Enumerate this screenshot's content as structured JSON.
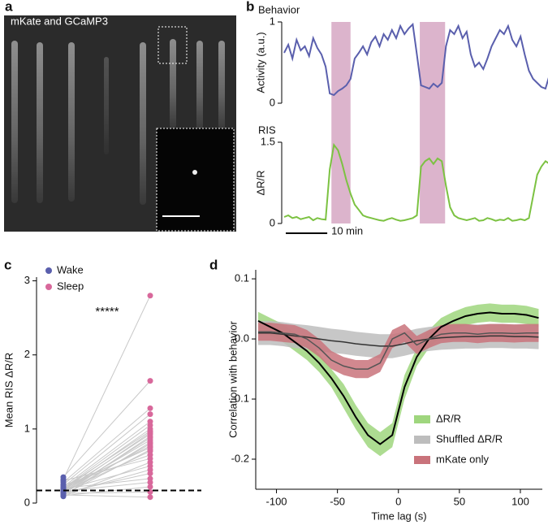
{
  "image_panel": {
    "panel_label": "a",
    "caption": "mKate and GCaMP3"
  },
  "chart_data": [
    {
      "type": "line",
      "panel_label": "b",
      "title": "Behavior",
      "ylabel": "Activity (a.u.)",
      "color": "#5a5fad",
      "x": [
        0,
        1,
        2,
        3,
        4,
        5,
        6,
        7,
        8,
        9,
        10,
        11,
        12,
        13,
        14,
        15,
        16,
        17,
        18,
        19,
        20,
        21,
        22,
        23,
        24,
        25,
        26,
        27,
        28,
        29,
        30,
        31,
        32,
        33,
        34,
        35,
        36,
        37,
        38,
        39,
        40,
        41,
        42,
        43,
        44,
        45,
        46,
        47,
        48,
        49,
        50,
        51,
        52,
        53,
        54,
        55,
        56,
        57,
        58,
        59,
        60,
        61,
        62,
        63,
        64
      ],
      "values": [
        0.62,
        0.72,
        0.55,
        0.78,
        0.65,
        0.7,
        0.58,
        0.8,
        0.68,
        0.6,
        0.45,
        0.12,
        0.1,
        0.15,
        0.18,
        0.22,
        0.3,
        0.55,
        0.62,
        0.7,
        0.6,
        0.75,
        0.82,
        0.7,
        0.85,
        0.78,
        0.9,
        0.8,
        0.95,
        0.85,
        0.92,
        0.97,
        0.6,
        0.22,
        0.2,
        0.18,
        0.24,
        0.2,
        0.25,
        0.7,
        0.9,
        0.85,
        0.95,
        0.8,
        0.88,
        0.6,
        0.45,
        0.5,
        0.42,
        0.55,
        0.7,
        0.8,
        0.9,
        0.85,
        0.95,
        0.78,
        0.7,
        0.82,
        0.6,
        0.4,
        0.3,
        0.25,
        0.2,
        0.18,
        0.35
      ],
      "xlim": [
        0,
        64
      ],
      "ylim": [
        0,
        1
      ],
      "yticks": [
        0,
        1
      ],
      "shaded": [
        [
          11.4,
          16
        ],
        [
          32.7,
          38.8
        ]
      ],
      "shade_color": "#dcb4cc"
    },
    {
      "type": "line",
      "title": "RIS",
      "ylabel": "ΔR/R",
      "color": "#7cc242",
      "x": [
        0,
        1,
        2,
        3,
        4,
        5,
        6,
        7,
        8,
        9,
        10,
        11,
        12,
        13,
        14,
        15,
        16,
        17,
        18,
        19,
        20,
        21,
        22,
        23,
        24,
        25,
        26,
        27,
        28,
        29,
        30,
        31,
        32,
        33,
        34,
        35,
        36,
        37,
        38,
        39,
        40,
        41,
        42,
        43,
        44,
        45,
        46,
        47,
        48,
        49,
        50,
        51,
        52,
        53,
        54,
        55,
        56,
        57,
        58,
        59,
        60,
        61,
        62,
        63,
        64
      ],
      "values": [
        0.12,
        0.15,
        0.1,
        0.12,
        0.08,
        0.1,
        0.12,
        0.06,
        0.1,
        0.08,
        0.07,
        1.0,
        1.45,
        1.35,
        1.1,
        0.8,
        0.55,
        0.35,
        0.25,
        0.15,
        0.12,
        0.1,
        0.08,
        0.06,
        0.05,
        0.08,
        0.1,
        0.07,
        0.05,
        0.06,
        0.08,
        0.1,
        0.15,
        1.05,
        1.15,
        1.2,
        1.1,
        1.2,
        1.15,
        0.7,
        0.3,
        0.15,
        0.1,
        0.08,
        0.06,
        0.08,
        0.1,
        0.05,
        0.06,
        0.1,
        0.08,
        0.05,
        0.07,
        0.06,
        0.1,
        0.05,
        0.06,
        0.08,
        0.06,
        0.1,
        0.5,
        0.9,
        1.05,
        1.15,
        1.1
      ],
      "xlim": [
        0,
        64
      ],
      "ylim": [
        0,
        1.5
      ],
      "yticks": [
        0,
        1.5
      ],
      "scale_bar": {
        "value": 10,
        "label": "10 min"
      }
    },
    {
      "type": "paired-scatter",
      "panel_label": "c",
      "ylabel": "Mean RIS ΔR/R",
      "annotation": "*****",
      "series": [
        {
          "name": "Wake",
          "color": "#5a5fad",
          "values": [
            0.32,
            0.35,
            0.28,
            0.25,
            0.22,
            0.2,
            0.18,
            0.2,
            0.15,
            0.17,
            0.12,
            0.14,
            0.16,
            0.1,
            0.13,
            0.19,
            0.21,
            0.11,
            0.15,
            0.24,
            0.3,
            0.09,
            0.18,
            0.12,
            0.14,
            0.2,
            0.16,
            0.1,
            0.13,
            0.11
          ]
        },
        {
          "name": "Sleep",
          "color": "#d8689b",
          "values": [
            2.8,
            1.65,
            1.28,
            1.2,
            1.1,
            1.05,
            1.0,
            0.97,
            0.95,
            0.93,
            0.9,
            0.88,
            0.85,
            0.82,
            0.8,
            0.77,
            0.75,
            0.72,
            0.7,
            0.65,
            0.6,
            0.55,
            0.5,
            0.45,
            0.4,
            0.33,
            0.28,
            0.22,
            0.15,
            0.08
          ]
        }
      ],
      "connector_color": "#c8c8c8",
      "reference_line": 0.17,
      "ylim": [
        0,
        3.05
      ],
      "yticks": [
        0,
        1,
        2,
        3
      ]
    },
    {
      "type": "band-line",
      "panel_label": "d",
      "xlabel": "Time lag (s)",
      "ylabel": "Correlation with behavior",
      "x": [
        -115,
        -105,
        -95,
        -85,
        -75,
        -65,
        -55,
        -45,
        -35,
        -25,
        -15,
        -5,
        5,
        15,
        25,
        35,
        45,
        55,
        65,
        75,
        85,
        95,
        105,
        115
      ],
      "series": [
        {
          "name": "ΔR/R",
          "color": "#9fd67e",
          "line_color": "#000000",
          "values": [
            0.03,
            0.02,
            0.01,
            -0.005,
            -0.02,
            -0.04,
            -0.065,
            -0.095,
            -0.13,
            -0.16,
            -0.175,
            -0.16,
            -0.08,
            -0.03,
            0.0,
            0.02,
            0.03,
            0.038,
            0.042,
            0.044,
            0.042,
            0.042,
            0.04,
            0.035
          ],
          "lower": [
            0.015,
            0.005,
            -0.005,
            -0.02,
            -0.035,
            -0.055,
            -0.08,
            -0.115,
            -0.15,
            -0.18,
            -0.195,
            -0.18,
            -0.1,
            -0.045,
            -0.015,
            0.005,
            0.015,
            0.023,
            0.027,
            0.029,
            0.027,
            0.027,
            0.025,
            0.02
          ],
          "upper": [
            0.045,
            0.035,
            0.025,
            0.01,
            -0.005,
            -0.025,
            -0.05,
            -0.075,
            -0.11,
            -0.14,
            -0.155,
            -0.14,
            -0.06,
            -0.015,
            0.015,
            0.035,
            0.045,
            0.053,
            0.057,
            0.059,
            0.057,
            0.057,
            0.055,
            0.05
          ]
        },
        {
          "name": "Shuffled ΔR/R",
          "color": "#bdbdbd",
          "line_color": "#333333",
          "values": [
            0.01,
            0.01,
            0.008,
            0.005,
            0.003,
            0.0,
            -0.003,
            -0.005,
            -0.008,
            -0.01,
            -0.012,
            -0.012,
            -0.008,
            -0.003,
            0.0,
            0.002,
            0.003,
            0.004,
            0.004,
            0.005,
            0.005,
            0.004,
            0.004,
            0.003
          ],
          "lower": [
            -0.01,
            -0.01,
            -0.012,
            -0.015,
            -0.017,
            -0.02,
            -0.023,
            -0.025,
            -0.028,
            -0.03,
            -0.032,
            -0.032,
            -0.028,
            -0.023,
            -0.02,
            -0.018,
            -0.017,
            -0.016,
            -0.016,
            -0.015,
            -0.015,
            -0.016,
            -0.016,
            -0.017
          ],
          "upper": [
            0.03,
            0.03,
            0.028,
            0.025,
            0.023,
            0.02,
            0.017,
            0.015,
            0.012,
            0.01,
            0.008,
            0.008,
            0.012,
            0.017,
            0.02,
            0.022,
            0.023,
            0.024,
            0.024,
            0.025,
            0.025,
            0.024,
            0.024,
            0.023
          ]
        },
        {
          "name": "mKate only",
          "color": "#c9737b",
          "line_color": "#555555",
          "values": [
            0.012,
            0.012,
            0.01,
            0.008,
            0.0,
            -0.015,
            -0.035,
            -0.045,
            -0.05,
            -0.05,
            -0.04,
            0.0,
            0.01,
            -0.01,
            0.0,
            0.008,
            0.01,
            0.01,
            0.008,
            0.01,
            0.01,
            0.009,
            0.01,
            0.01
          ],
          "lower": [
            -0.003,
            -0.003,
            -0.005,
            -0.007,
            -0.015,
            -0.03,
            -0.05,
            -0.06,
            -0.065,
            -0.065,
            -0.055,
            -0.015,
            -0.005,
            -0.025,
            -0.015,
            -0.007,
            -0.005,
            -0.005,
            -0.007,
            -0.005,
            -0.005,
            -0.006,
            -0.005,
            -0.005
          ],
          "upper": [
            0.027,
            0.027,
            0.025,
            0.023,
            0.015,
            0.0,
            -0.02,
            -0.03,
            -0.035,
            -0.035,
            -0.025,
            0.015,
            0.025,
            0.005,
            0.015,
            0.023,
            0.025,
            0.025,
            0.023,
            0.025,
            0.025,
            0.024,
            0.025,
            0.025
          ]
        }
      ],
      "xlim": [
        -117,
        118
      ],
      "ylim": [
        -0.25,
        0.115
      ],
      "xticks": [
        -100,
        -50,
        0,
        50,
        100
      ],
      "yticks": [
        -0.2,
        -0.1,
        {
          "value": 0,
          "label": "0.0"
        },
        0.1
      ]
    }
  ]
}
